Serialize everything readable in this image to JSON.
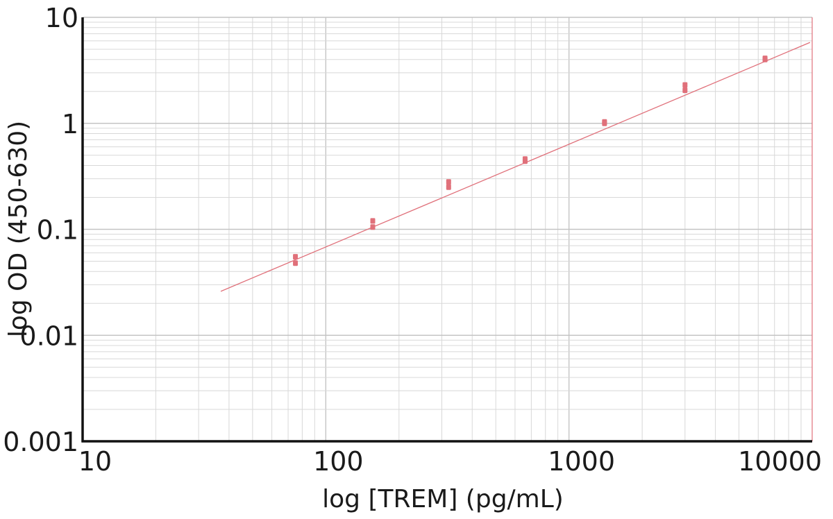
{
  "chart_data": {
    "type": "scatter",
    "title": "",
    "xlabel": "log [TREM] (pg/mL)",
    "ylabel": "log OD (450-630)",
    "x_scale": "log",
    "y_scale": "log",
    "xlim": [
      10,
      10000
    ],
    "ylim": [
      0.001,
      10
    ],
    "grid": true,
    "x_ticks": [
      {
        "value": 10,
        "label": "10"
      },
      {
        "value": 100,
        "label": "100"
      },
      {
        "value": 1000,
        "label": "1000"
      },
      {
        "value": 10000,
        "label": "10000"
      }
    ],
    "y_ticks": [
      {
        "value": 0.001,
        "label": "0.001"
      },
      {
        "value": 0.01,
        "label": "0.01"
      },
      {
        "value": 0.1,
        "label": "0.1"
      },
      {
        "value": 1,
        "label": "1"
      },
      {
        "value": 10,
        "label": "10"
      }
    ],
    "series": [
      {
        "points": [
          {
            "x": 75,
            "y": 0.048
          },
          {
            "x": 75,
            "y": 0.055
          },
          {
            "x": 156,
            "y": 0.105
          },
          {
            "x": 156,
            "y": 0.12
          },
          {
            "x": 320,
            "y": 0.25
          },
          {
            "x": 320,
            "y": 0.28
          },
          {
            "x": 660,
            "y": 0.44
          },
          {
            "x": 660,
            "y": 0.46
          },
          {
            "x": 1400,
            "y": 1.0
          },
          {
            "x": 1400,
            "y": 1.03
          },
          {
            "x": 3000,
            "y": 2.05
          },
          {
            "x": 3000,
            "y": 2.3
          },
          {
            "x": 6400,
            "y": 4.0
          },
          {
            "x": 6400,
            "y": 4.1
          }
        ]
      }
    ],
    "fit_line": {
      "x": [
        37,
        9800
      ],
      "y": [
        0.026,
        5.8
      ]
    },
    "colors": {
      "series": "#e0707a",
      "axis": "#111111",
      "grid": "#d8d8d8",
      "grid_dark": "#c4c4c4"
    }
  }
}
